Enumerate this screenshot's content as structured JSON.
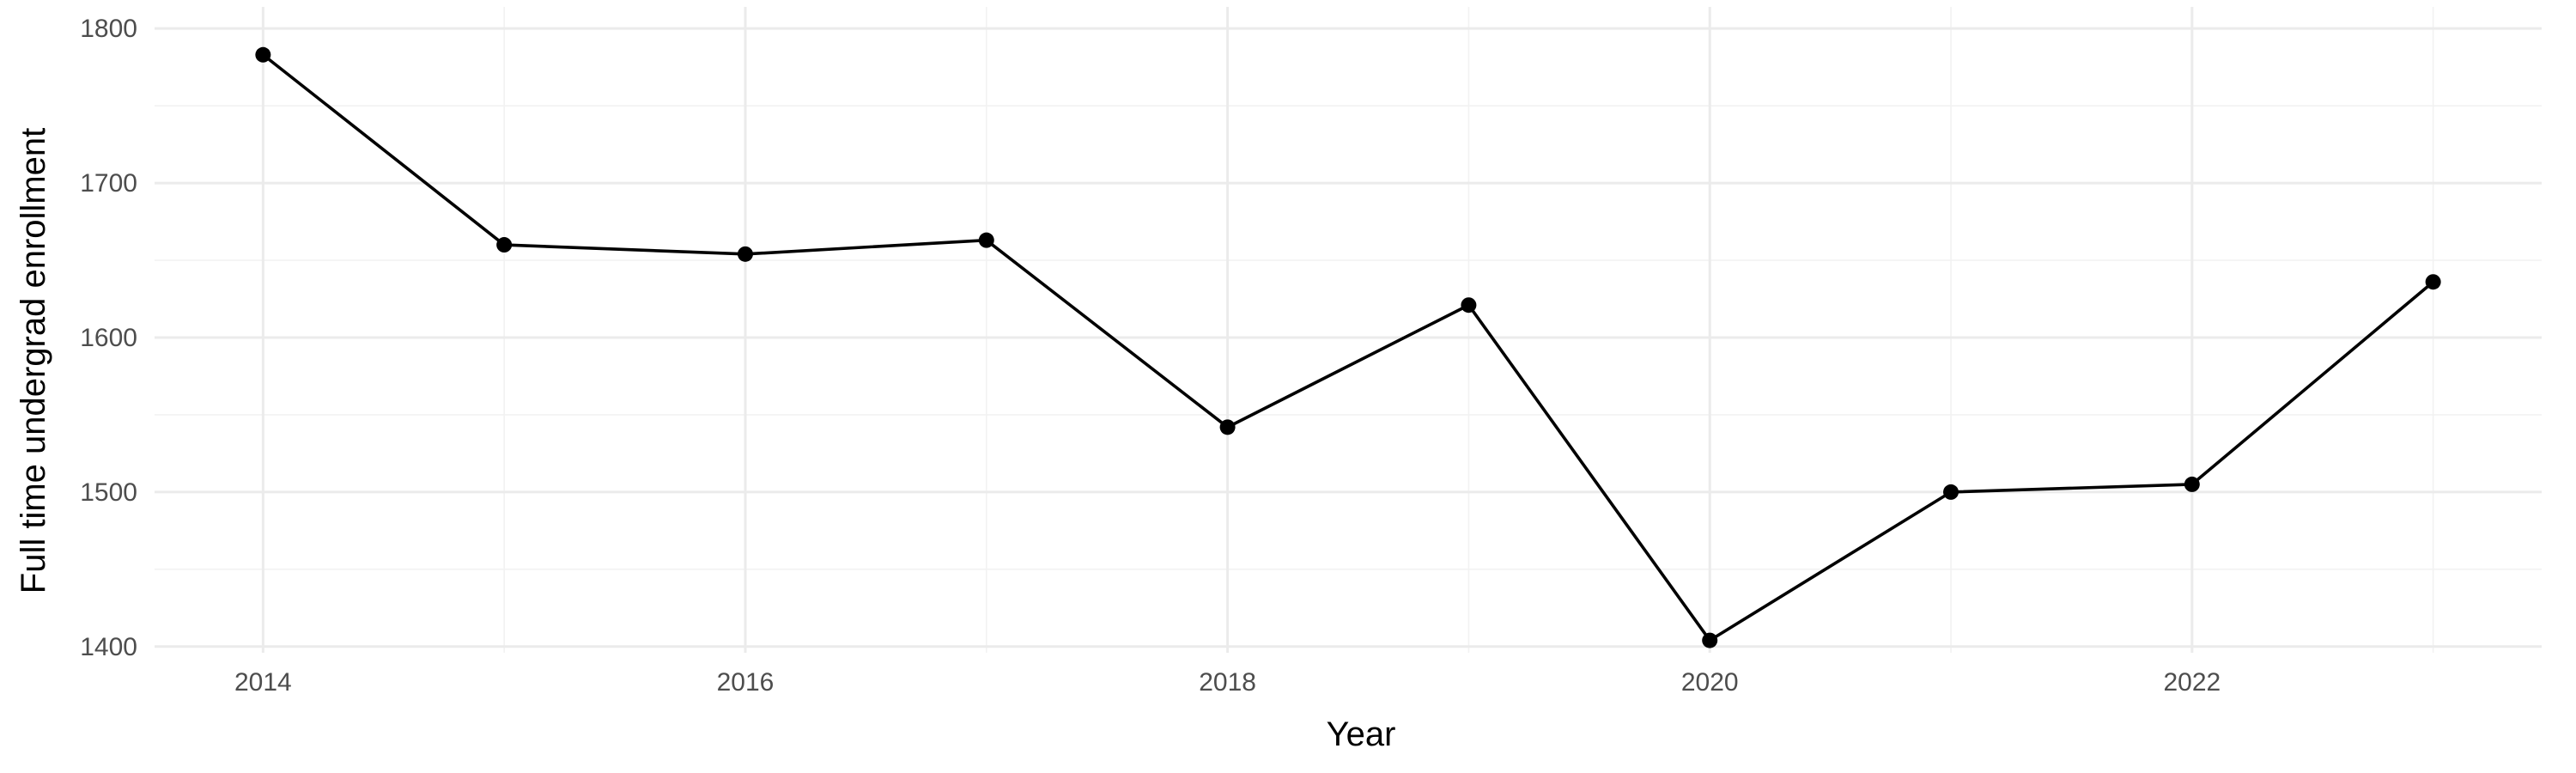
{
  "chart_data": {
    "type": "line",
    "xlabel": "Year",
    "ylabel": "Full time undergrad enrollment",
    "x": [
      2014,
      2015,
      2016,
      2017,
      2018,
      2019,
      2020,
      2021,
      2022,
      2023
    ],
    "series": [
      {
        "values": [
          1783,
          1660,
          1654,
          1663,
          1542,
          1621,
          1404,
          1500,
          1505,
          1636
        ]
      }
    ],
    "xlim": [
      2013.55,
      2023.45
    ],
    "ylim": [
      1396,
      1814
    ],
    "x_ticks": [
      2014,
      2016,
      2018,
      2020,
      2022
    ],
    "x_tick_labels": [
      "2014",
      "2016",
      "2018",
      "2020",
      "2022"
    ],
    "y_ticks": [
      1400,
      1500,
      1600,
      1700,
      1800
    ],
    "y_tick_labels": [
      "1400",
      "1500",
      "1600",
      "1700",
      "1800"
    ],
    "grid": true,
    "legend": "none",
    "colors": {
      "line": "#000000",
      "point": "#000000",
      "grid": "#ebebeb",
      "background": "#ffffff"
    }
  }
}
